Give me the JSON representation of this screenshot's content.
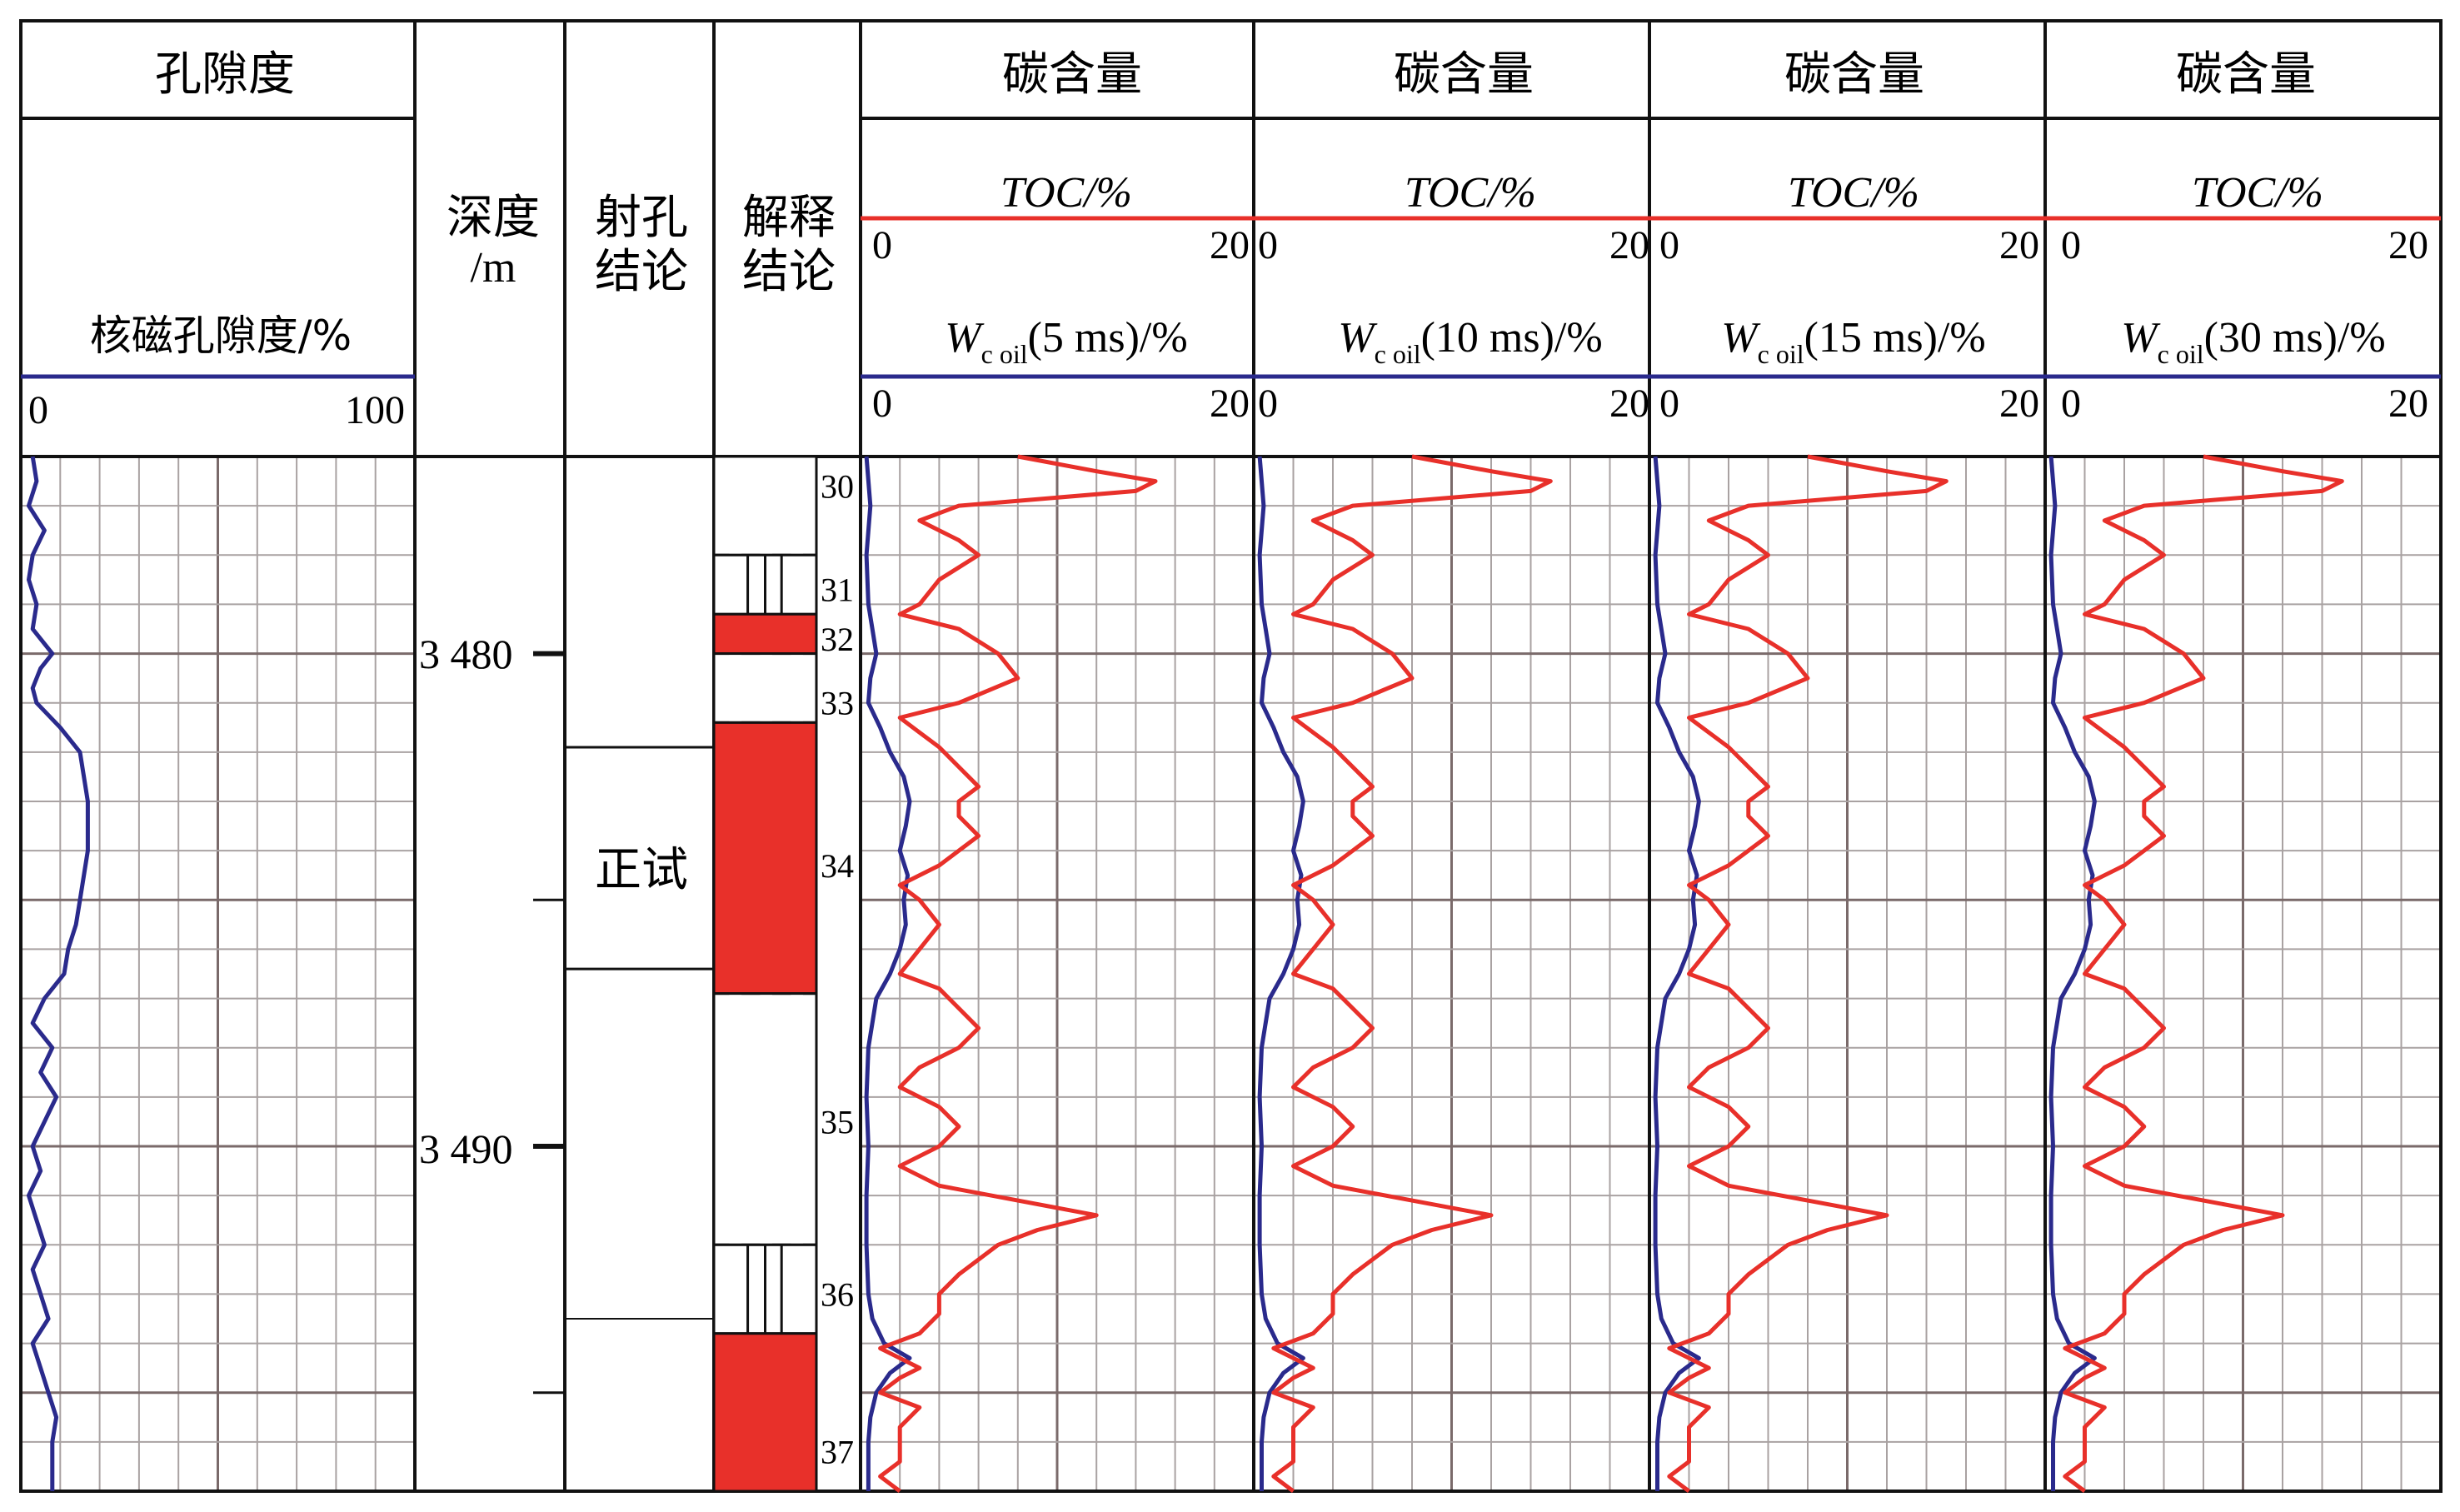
{
  "chart_data": {
    "type": "line",
    "track1": {
      "title": "孔隙度",
      "curve_label": "核磁孔隙度/%",
      "scale_min": "0",
      "scale_max": "100",
      "min": 0,
      "max": 100,
      "color": "#2a2a8c"
    },
    "depth_track": {
      "title_line1": "深度",
      "title_line2": "/m",
      "tick_labels": [
        "3 480",
        "3 490"
      ],
      "major_ticks": [
        3480,
        3490
      ],
      "minor_ticks": [
        3485,
        3495
      ]
    },
    "perforation_track": {
      "title_line1": "射孔",
      "title_line2": "结论",
      "label": "正试",
      "interval": [
        3481.9,
        3486.4
      ]
    },
    "interpretation_track": {
      "title_line1": "解释",
      "title_line2": "结论",
      "layers": [
        {
          "num": "30",
          "top": 3476.0,
          "bottom": 3478.0,
          "type": "striped"
        },
        {
          "num": "31",
          "top": 3478.0,
          "bottom": 3479.2,
          "type": "dry"
        },
        {
          "num": "32",
          "top": 3479.2,
          "bottom": 3480.0,
          "type": "solid"
        },
        {
          "num": "33",
          "top": 3480.0,
          "bottom": 3481.4,
          "type": "striped"
        },
        {
          "num": "34",
          "top": 3481.4,
          "bottom": 3486.9,
          "type": "solid"
        },
        {
          "num": "35",
          "top": 3486.9,
          "bottom": 3492.0,
          "type": "striped"
        },
        {
          "num": "36",
          "top": 3492.0,
          "bottom": 3493.8,
          "type": "dry"
        },
        {
          "num": "37",
          "top": 3493.8,
          "bottom": 3497.0,
          "type": "solid"
        }
      ],
      "number_positions": [
        3476.5,
        3478.6,
        3479.6,
        3480.9,
        3481.4,
        3486.9,
        3490.3,
        3495.9
      ]
    },
    "carbon_tracks": [
      {
        "title": "碳含量",
        "toc_label": "TOC/%",
        "w_main": "W",
        "w_sub": "c oil",
        "w_suffix": "(5 ms)/%",
        "scale_min": "0",
        "scale_max": "20",
        "scale_min2": "0",
        "scale_max2": "20"
      },
      {
        "title": "碳含量",
        "toc_label": "TOC/%",
        "w_main": "W",
        "w_sub": "c oil",
        "w_suffix": "(10 ms)/%",
        "scale_min": "0",
        "scale_max": "20",
        "scale_min2": "0",
        "scale_max2": "20"
      },
      {
        "title": "碳含量",
        "toc_label": "TOC/%",
        "w_main": "W",
        "w_sub": "c oil",
        "w_suffix": "(15 ms)/%",
        "scale_min": "0",
        "scale_max": "20",
        "scale_min2": "0",
        "scale_max2": "20"
      },
      {
        "title": "碳含量",
        "toc_label": "TOC/%",
        "w_main": "W",
        "w_sub": "c oil",
        "w_suffix": "(30 ms)/%",
        "scale_min": "0",
        "scale_max": "20",
        "scale_min2": "0",
        "scale_max2": "20"
      }
    ],
    "depth_range": [
      3476.0,
      3497.0
    ],
    "scale_range": [
      0,
      20
    ],
    "toc_color": "#e8302a",
    "woil_color": "#2a2a8c",
    "porosity": {
      "depth": [
        3476.0,
        3476.5,
        3477.0,
        3477.5,
        3478.0,
        3478.5,
        3479.0,
        3479.5,
        3480.0,
        3480.3,
        3480.7,
        3481.0,
        3481.5,
        3482.0,
        3482.5,
        3483.0,
        3483.5,
        3484.0,
        3484.5,
        3485.0,
        3485.5,
        3486.0,
        3486.5,
        3487.0,
        3487.5,
        3488.0,
        3488.5,
        3489.0,
        3489.5,
        3490.0,
        3490.5,
        3491.0,
        3491.5,
        3492.0,
        3492.5,
        3493.0,
        3493.5,
        3494.0,
        3494.5,
        3495.0,
        3495.5,
        3496.0,
        3496.5,
        3497.0
      ],
      "value": [
        3,
        4,
        2,
        6,
        3,
        2,
        4,
        3,
        8,
        5,
        3,
        4,
        10,
        15,
        16,
        17,
        17,
        17,
        16,
        15,
        14,
        12,
        11,
        6,
        3,
        8,
        5,
        9,
        6,
        3,
        5,
        2,
        4,
        6,
        3,
        5,
        7,
        3,
        5,
        7,
        9,
        8,
        8,
        8
      ]
    },
    "toc": {
      "depth": [
        3476.0,
        3476.3,
        3476.5,
        3476.7,
        3477.0,
        3477.3,
        3477.7,
        3478.0,
        3478.5,
        3479.0,
        3479.2,
        3479.5,
        3480.0,
        3480.5,
        3481.0,
        3481.3,
        3481.6,
        3481.9,
        3482.3,
        3482.7,
        3483.0,
        3483.3,
        3483.7,
        3484.0,
        3484.3,
        3484.7,
        3485.0,
        3485.5,
        3486.0,
        3486.5,
        3486.8,
        3487.2,
        3487.6,
        3488.0,
        3488.4,
        3488.8,
        3489.2,
        3489.6,
        3490.0,
        3490.4,
        3490.8,
        3491.1,
        3491.4,
        3491.7,
        3492.0,
        3492.3,
        3492.6,
        3493.0,
        3493.4,
        3493.8,
        3494.1,
        3494.3,
        3494.5,
        3494.7,
        3495.0,
        3495.3,
        3495.7,
        3496.0,
        3496.4,
        3496.7,
        3497.0
      ],
      "value": [
        8,
        12,
        15,
        14,
        5,
        3,
        5,
        6,
        4,
        3,
        2,
        5,
        7,
        8,
        5,
        2,
        3,
        4,
        5,
        6,
        5,
        5,
        6,
        5,
        4,
        2,
        3,
        4,
        3,
        2,
        4,
        5,
        6,
        5,
        3,
        2,
        4,
        5,
        4,
        2,
        4,
        8,
        12,
        9,
        7,
        6,
        5,
        4,
        4,
        3,
        1,
        2,
        3,
        2,
        1,
        3,
        2,
        2,
        2,
        1,
        2
      ]
    },
    "woil": {
      "depth": [
        3476.0,
        3477.0,
        3478.0,
        3479.0,
        3479.5,
        3480.0,
        3480.5,
        3481.0,
        3481.5,
        3482.0,
        3482.5,
        3483.0,
        3483.5,
        3484.0,
        3484.5,
        3485.0,
        3485.5,
        3486.0,
        3486.5,
        3487.0,
        3488.0,
        3489.0,
        3490.0,
        3491.0,
        3492.0,
        3493.0,
        3493.5,
        3494.0,
        3494.3,
        3494.6,
        3495.0,
        3495.5,
        3496.0,
        3497.0
      ],
      "value": [
        0.3,
        0.5,
        0.3,
        0.4,
        0.6,
        0.8,
        0.5,
        0.4,
        1.0,
        1.5,
        2.2,
        2.5,
        2.3,
        2.0,
        2.4,
        2.2,
        2.3,
        2.0,
        1.5,
        0.8,
        0.4,
        0.3,
        0.4,
        0.3,
        0.3,
        0.4,
        0.6,
        1.2,
        2.5,
        1.5,
        0.8,
        0.5,
        0.4,
        0.4
      ]
    }
  }
}
